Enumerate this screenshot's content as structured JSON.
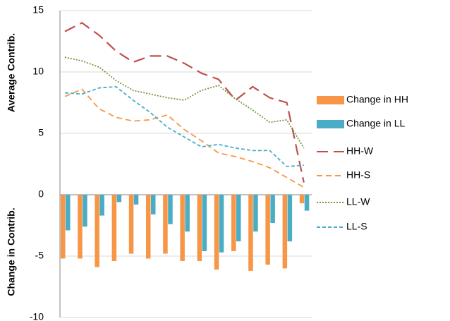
{
  "chart_data": {
    "type": "combo",
    "y_labels": [
      "Average Contrib.",
      "Change in Contrib."
    ],
    "categories": [
      null,
      null,
      null,
      null,
      null,
      null,
      null,
      null,
      null,
      null,
      null,
      null,
      null,
      null,
      null
    ],
    "ylim": [
      -10,
      15
    ],
    "yticks": [
      -10,
      -5,
      0,
      5,
      10,
      15
    ],
    "grid": true,
    "legend": "right",
    "series": [
      {
        "name": "Change in HH",
        "kind": "bar",
        "color": "#F79646",
        "values": [
          -5.2,
          -5.2,
          -5.9,
          -5.4,
          -4.8,
          -5.2,
          -4.8,
          -5.4,
          -5.4,
          -6.1,
          -4.6,
          -6.2,
          -5.7,
          -6.0,
          -0.7
        ]
      },
      {
        "name": "Change in LL",
        "kind": "bar",
        "color": "#4BACC6",
        "values": [
          -2.9,
          -2.6,
          -1.7,
          -0.6,
          -0.8,
          -1.6,
          -2.4,
          -3.0,
          -4.6,
          -4.7,
          -3.8,
          -3.0,
          -2.3,
          -3.8,
          -1.3
        ]
      },
      {
        "name": "HH-W",
        "kind": "line",
        "dash": "long",
        "color": "#C0504D",
        "values": [
          13.3,
          14.0,
          13.0,
          11.7,
          10.8,
          11.3,
          11.3,
          10.7,
          9.9,
          9.4,
          7.7,
          8.8,
          7.9,
          7.5,
          1.0
        ]
      },
      {
        "name": "HH-S",
        "kind": "line",
        "dash": "medium",
        "color": "#F79646",
        "values": [
          8.0,
          8.6,
          7.0,
          6.3,
          6.0,
          6.1,
          6.5,
          5.3,
          4.4,
          3.4,
          3.1,
          2.7,
          2.2,
          1.4,
          0.6
        ]
      },
      {
        "name": "LL-W",
        "kind": "line",
        "dash": "dot",
        "color": "#77933C",
        "values": [
          11.2,
          10.9,
          10.4,
          9.3,
          8.5,
          8.2,
          7.9,
          7.7,
          8.5,
          8.9,
          7.8,
          6.9,
          5.9,
          6.1,
          3.8
        ]
      },
      {
        "name": "LL-S",
        "kind": "line",
        "dash": "short",
        "color": "#4BACC6",
        "values": [
          8.3,
          8.2,
          8.7,
          8.8,
          7.7,
          6.7,
          5.5,
          4.7,
          3.9,
          4.1,
          3.8,
          3.6,
          3.6,
          2.3,
          2.4
        ]
      }
    ]
  }
}
